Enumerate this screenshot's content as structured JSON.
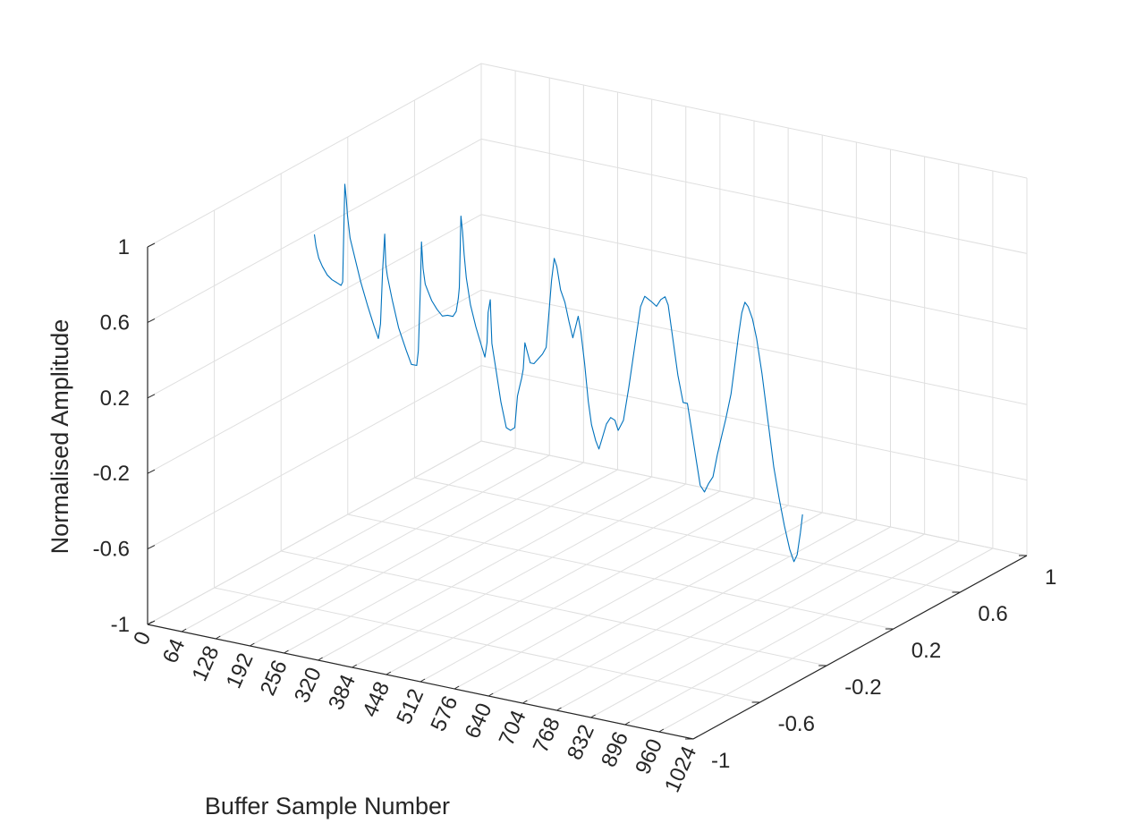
{
  "chart_data": {
    "type": "line",
    "view": "3d",
    "xlabel": "Buffer Sample Number",
    "ylabel": "",
    "zlabel": "Normalised Amplitude",
    "x_ticks": [
      "0",
      "64",
      "128",
      "192",
      "256",
      "320",
      "384",
      "448",
      "512",
      "576",
      "640",
      "704",
      "768",
      "832",
      "896",
      "960",
      "1024"
    ],
    "y_ticks": [
      "-1",
      "-0.6",
      "-0.2",
      "0.2",
      "0.6",
      "1"
    ],
    "z_ticks": [
      "-1",
      "-0.6",
      "-0.2",
      "0.2",
      "0.6",
      "1"
    ],
    "xlim": [
      0,
      1024
    ],
    "ylim": [
      -1,
      1
    ],
    "zlim": [
      -1,
      1
    ],
    "grid": true,
    "series_color": "#0072BD",
    "series": [
      {
        "y_value": 0,
        "points": [
          [
            0,
            0.58
          ],
          [
            3,
            0.52
          ],
          [
            8,
            0.46
          ],
          [
            15,
            0.42
          ],
          [
            24,
            0.38
          ],
          [
            33,
            0.36
          ],
          [
            42,
            0.35
          ],
          [
            50,
            0.34
          ],
          [
            53,
            0.36
          ],
          [
            57,
            0.88
          ],
          [
            60,
            0.8
          ],
          [
            62,
            0.72
          ],
          [
            67,
            0.6
          ],
          [
            76,
            0.5
          ],
          [
            87,
            0.38
          ],
          [
            100,
            0.26
          ],
          [
            112,
            0.16
          ],
          [
            120,
            0.1
          ],
          [
            124,
            0.18
          ],
          [
            128,
            0.47
          ],
          [
            130,
            0.56
          ],
          [
            132,
            0.66
          ],
          [
            134,
            0.5
          ],
          [
            137,
            0.44
          ],
          [
            146,
            0.32
          ],
          [
            158,
            0.18
          ],
          [
            172,
            0.07
          ],
          [
            182,
            0.0
          ],
          [
            192,
            0.0
          ],
          [
            195,
            0.08
          ],
          [
            199,
            0.42
          ],
          [
            201,
            0.66
          ],
          [
            204,
            0.52
          ],
          [
            208,
            0.44
          ],
          [
            214,
            0.4
          ],
          [
            220,
            0.36
          ],
          [
            230,
            0.32
          ],
          [
            240,
            0.29
          ],
          [
            250,
            0.3
          ],
          [
            260,
            0.3
          ],
          [
            266,
            0.33
          ],
          [
            270,
            0.4
          ],
          [
            272,
            0.46
          ],
          [
            275,
            0.84
          ],
          [
            278,
            0.76
          ],
          [
            281,
            0.64
          ],
          [
            285,
            0.52
          ],
          [
            293,
            0.38
          ],
          [
            303,
            0.27
          ],
          [
            313,
            0.18
          ],
          [
            320,
            0.12
          ],
          [
            324,
            0.2
          ],
          [
            326,
            0.36
          ],
          [
            330,
            0.43
          ],
          [
            333,
            0.2
          ],
          [
            340,
            0.08
          ],
          [
            350,
            -0.1
          ],
          [
            360,
            -0.23
          ],
          [
            368,
            -0.24
          ],
          [
            376,
            -0.22
          ],
          [
            381,
            -0.05
          ],
          [
            385,
            0.0
          ],
          [
            389,
            0.05
          ],
          [
            392,
            0.1
          ],
          [
            395,
            0.24
          ],
          [
            400,
            0.19
          ],
          [
            405,
            0.14
          ],
          [
            412,
            0.14
          ],
          [
            420,
            0.17
          ],
          [
            428,
            0.2
          ],
          [
            435,
            0.24
          ],
          [
            440,
            0.42
          ],
          [
            445,
            0.6
          ],
          [
            450,
            0.72
          ],
          [
            455,
            0.68
          ],
          [
            462,
            0.56
          ],
          [
            470,
            0.5
          ],
          [
            478,
            0.4
          ],
          [
            485,
            0.32
          ],
          [
            490,
            0.38
          ],
          [
            495,
            0.44
          ],
          [
            500,
            0.36
          ],
          [
            507,
            0.2
          ],
          [
            514,
            0.0
          ],
          [
            520,
            -0.12
          ],
          [
            528,
            -0.2
          ],
          [
            534,
            -0.24
          ],
          [
            540,
            -0.18
          ],
          [
            548,
            -0.1
          ],
          [
            556,
            -0.06
          ],
          [
            564,
            -0.07
          ],
          [
            570,
            -0.12
          ],
          [
            580,
            -0.06
          ],
          [
            590,
            0.12
          ],
          [
            602,
            0.36
          ],
          [
            612,
            0.56
          ],
          [
            620,
            0.62
          ],
          [
            632,
            0.6
          ],
          [
            642,
            0.58
          ],
          [
            650,
            0.62
          ],
          [
            658,
            0.64
          ],
          [
            664,
            0.6
          ],
          [
            672,
            0.44
          ],
          [
            682,
            0.24
          ],
          [
            692,
            0.1
          ],
          [
            700,
            0.1
          ],
          [
            708,
            -0.04
          ],
          [
            716,
            -0.18
          ],
          [
            724,
            -0.32
          ],
          [
            732,
            -0.35
          ],
          [
            740,
            -0.3
          ],
          [
            748,
            -0.26
          ],
          [
            756,
            -0.14
          ],
          [
            764,
            -0.04
          ],
          [
            772,
            0.06
          ],
          [
            782,
            0.2
          ],
          [
            790,
            0.38
          ],
          [
            796,
            0.52
          ],
          [
            802,
            0.64
          ],
          [
            808,
            0.7
          ],
          [
            814,
            0.68
          ],
          [
            822,
            0.62
          ],
          [
            830,
            0.52
          ],
          [
            840,
            0.34
          ],
          [
            852,
            0.08
          ],
          [
            862,
            -0.14
          ],
          [
            872,
            -0.3
          ],
          [
            882,
            -0.44
          ],
          [
            892,
            -0.56
          ],
          [
            900,
            -0.62
          ],
          [
            906,
            -0.58
          ],
          [
            912,
            -0.46
          ],
          [
            916,
            -0.36
          ]
        ]
      }
    ]
  }
}
